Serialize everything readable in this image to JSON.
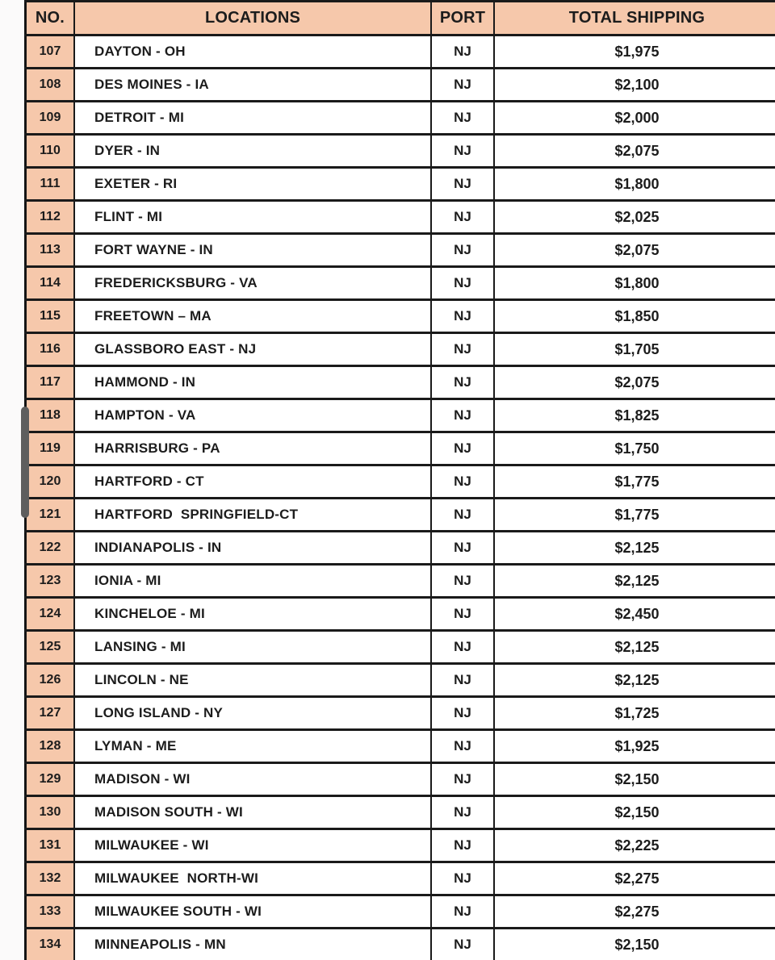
{
  "table": {
    "columns": [
      "NO.",
      "LOCATIONS",
      "PORT",
      "TOTAL SHIPPING"
    ],
    "rows": [
      {
        "no": "107",
        "location": "DAYTON - OH",
        "port": "NJ",
        "total": "$1,975"
      },
      {
        "no": "108",
        "location": "DES MOINES - IA",
        "port": "NJ",
        "total": "$2,100"
      },
      {
        "no": "109",
        "location": "DETROIT - MI",
        "port": "NJ",
        "total": "$2,000"
      },
      {
        "no": "110",
        "location": "DYER - IN",
        "port": "NJ",
        "total": "$2,075"
      },
      {
        "no": "111",
        "location": "EXETER - RI",
        "port": "NJ",
        "total": "$1,800"
      },
      {
        "no": "112",
        "location": "FLINT - MI",
        "port": "NJ",
        "total": "$2,025"
      },
      {
        "no": "113",
        "location": "FORT WAYNE - IN",
        "port": "NJ",
        "total": "$2,075"
      },
      {
        "no": "114",
        "location": "FREDERICKSBURG - VA",
        "port": "NJ",
        "total": "$1,800"
      },
      {
        "no": "115",
        "location": "FREETOWN – MA",
        "port": "NJ",
        "total": "$1,850"
      },
      {
        "no": "116",
        "location": "GLASSBORO EAST - NJ",
        "port": "NJ",
        "total": "$1,705"
      },
      {
        "no": "117",
        "location": "HAMMOND - IN",
        "port": "NJ",
        "total": "$2,075"
      },
      {
        "no": "118",
        "location": "HAMPTON - VA",
        "port": "NJ",
        "total": "$1,825"
      },
      {
        "no": "119",
        "location": "HARRISBURG - PA",
        "port": "NJ",
        "total": "$1,750"
      },
      {
        "no": "120",
        "location": "HARTFORD - CT",
        "port": "NJ",
        "total": "$1,775"
      },
      {
        "no": "121",
        "location": "HARTFORD  SPRINGFIELD-CT",
        "port": "NJ",
        "total": "$1,775"
      },
      {
        "no": "122",
        "location": "INDIANAPOLIS - IN",
        "port": "NJ",
        "total": "$2,125"
      },
      {
        "no": "123",
        "location": "IONIA - MI",
        "port": "NJ",
        "total": "$2,125"
      },
      {
        "no": "124",
        "location": "KINCHELOE - MI",
        "port": "NJ",
        "total": "$2,450"
      },
      {
        "no": "125",
        "location": "LANSING - MI",
        "port": "NJ",
        "total": "$2,125"
      },
      {
        "no": "126",
        "location": "LINCOLN - NE",
        "port": "NJ",
        "total": "$2,125"
      },
      {
        "no": "127",
        "location": "LONG ISLAND - NY",
        "port": "NJ",
        "total": "$1,725"
      },
      {
        "no": "128",
        "location": "LYMAN - ME",
        "port": "NJ",
        "total": "$1,925"
      },
      {
        "no": "129",
        "location": "MADISON - WI",
        "port": "NJ",
        "total": "$2,150"
      },
      {
        "no": "130",
        "location": "MADISON SOUTH - WI",
        "port": "NJ",
        "total": "$2,150"
      },
      {
        "no": "131",
        "location": "MILWAUKEE - WI",
        "port": "NJ",
        "total": "$2,225"
      },
      {
        "no": "132",
        "location": "MILWAUKEE  NORTH-WI",
        "port": "NJ",
        "total": "$2,275"
      },
      {
        "no": "133",
        "location": "MILWAUKEE SOUTH - WI",
        "port": "NJ",
        "total": "$2,275"
      },
      {
        "no": "134",
        "location": "MINNEAPOLIS - MN",
        "port": "NJ",
        "total": "$2,150"
      }
    ]
  },
  "colors": {
    "header_bg": "#f6c8ab",
    "row_number_bg": "#f6c8ab",
    "border": "#1a1a1a",
    "scrollbar_thumb": "#5e5e5e"
  }
}
